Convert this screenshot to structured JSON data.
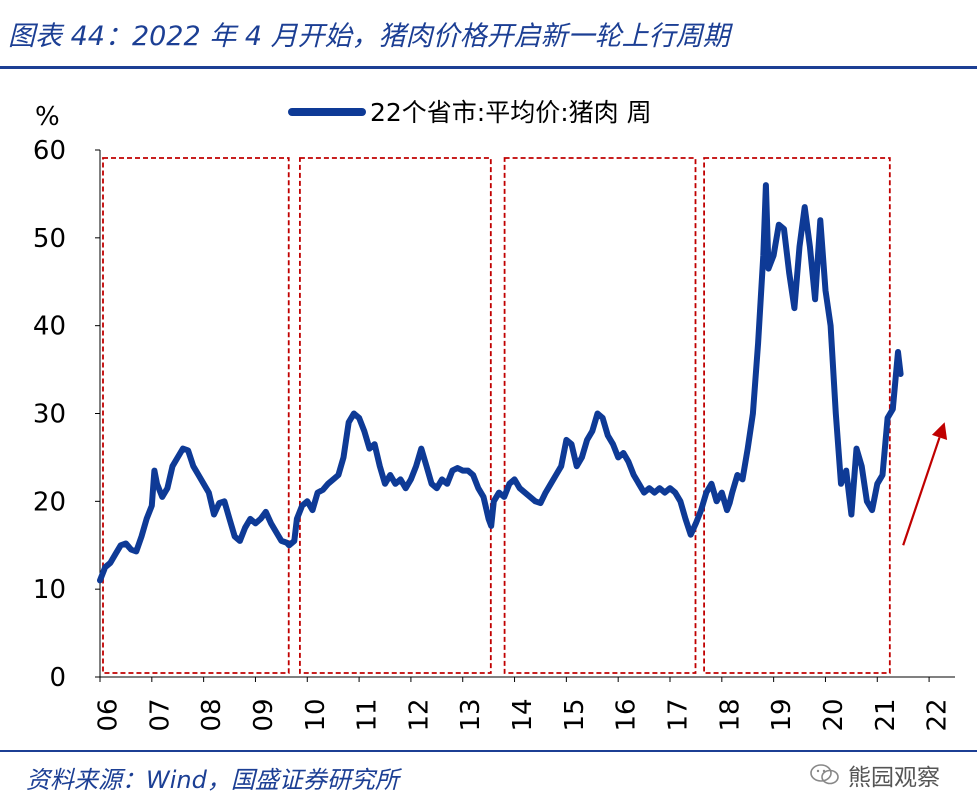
{
  "header": {
    "title": "图表 44：2022 年 4 月开始，猪肉价格开启新一轮上行周期"
  },
  "footer": {
    "source": "资料来源：Wind，国盛证券研究所",
    "watermark": "熊园观察"
  },
  "colors": {
    "accent": "#1c3f94",
    "series": "#0e3a96",
    "box": "#c00000",
    "arrow": "#c00000"
  },
  "chart_data": {
    "type": "line",
    "ylabel": "%",
    "ylim": [
      0,
      60
    ],
    "yticks": [
      0,
      10,
      20,
      30,
      40,
      50,
      60
    ],
    "xlim": [
      2006.0,
      2022.6
    ],
    "xtick_labels": [
      "06",
      "07",
      "08",
      "09",
      "10",
      "11",
      "12",
      "13",
      "14",
      "15",
      "16",
      "17",
      "18",
      "19",
      "20",
      "21",
      "22"
    ],
    "legend": {
      "position": "top-center",
      "label": "22个省市:平均价:猪肉 周"
    },
    "series": [
      {
        "name": "22个省市:平均价:猪肉 周",
        "points": [
          [
            2006.0,
            11.0
          ],
          [
            2006.1,
            12.5
          ],
          [
            2006.2,
            13.0
          ],
          [
            2006.3,
            14.0
          ],
          [
            2006.4,
            15.0
          ],
          [
            2006.5,
            15.2
          ],
          [
            2006.6,
            14.5
          ],
          [
            2006.7,
            14.3
          ],
          [
            2006.8,
            16.0
          ],
          [
            2006.9,
            18.0
          ],
          [
            2007.0,
            19.5
          ],
          [
            2007.05,
            23.5
          ],
          [
            2007.1,
            22.0
          ],
          [
            2007.2,
            20.5
          ],
          [
            2007.3,
            21.5
          ],
          [
            2007.4,
            24.0
          ],
          [
            2007.5,
            25.0
          ],
          [
            2007.6,
            26.0
          ],
          [
            2007.7,
            25.8
          ],
          [
            2007.8,
            24.0
          ],
          [
            2007.9,
            23.0
          ],
          [
            2008.0,
            22.0
          ],
          [
            2008.1,
            21.0
          ],
          [
            2008.2,
            18.5
          ],
          [
            2008.3,
            19.8
          ],
          [
            2008.4,
            20.0
          ],
          [
            2008.5,
            18.0
          ],
          [
            2008.6,
            16.0
          ],
          [
            2008.7,
            15.5
          ],
          [
            2008.8,
            17.0
          ],
          [
            2008.9,
            18.0
          ],
          [
            2009.0,
            17.5
          ],
          [
            2009.1,
            18.0
          ],
          [
            2009.2,
            18.8
          ],
          [
            2009.3,
            17.5
          ],
          [
            2009.4,
            16.5
          ],
          [
            2009.5,
            15.5
          ],
          [
            2009.6,
            15.3
          ],
          [
            2009.65,
            15.0
          ],
          [
            2009.75,
            15.5
          ],
          [
            2009.8,
            18.0
          ],
          [
            2009.9,
            19.5
          ],
          [
            2010.0,
            20.0
          ],
          [
            2010.1,
            19.0
          ],
          [
            2010.2,
            21.0
          ],
          [
            2010.3,
            21.3
          ],
          [
            2010.4,
            22.0
          ],
          [
            2010.5,
            22.5
          ],
          [
            2010.6,
            23.0
          ],
          [
            2010.7,
            25.0
          ],
          [
            2010.8,
            29.0
          ],
          [
            2010.9,
            30.0
          ],
          [
            2011.0,
            29.5
          ],
          [
            2011.1,
            28.0
          ],
          [
            2011.2,
            26.0
          ],
          [
            2011.3,
            26.5
          ],
          [
            2011.4,
            24.0
          ],
          [
            2011.5,
            22.0
          ],
          [
            2011.6,
            23.0
          ],
          [
            2011.7,
            22.0
          ],
          [
            2011.8,
            22.5
          ],
          [
            2011.9,
            21.5
          ],
          [
            2012.0,
            22.5
          ],
          [
            2012.1,
            24.0
          ],
          [
            2012.2,
            26.0
          ],
          [
            2012.3,
            24.0
          ],
          [
            2012.4,
            22.0
          ],
          [
            2012.5,
            21.5
          ],
          [
            2012.6,
            22.5
          ],
          [
            2012.7,
            22.0
          ],
          [
            2012.8,
            23.5
          ],
          [
            2012.9,
            23.8
          ],
          [
            2013.0,
            23.5
          ],
          [
            2013.1,
            23.5
          ],
          [
            2013.2,
            23.0
          ],
          [
            2013.3,
            21.5
          ],
          [
            2013.4,
            20.5
          ],
          [
            2013.5,
            18.0
          ],
          [
            2013.55,
            17.2
          ],
          [
            2013.6,
            20.0
          ],
          [
            2013.7,
            21.0
          ],
          [
            2013.8,
            20.5
          ],
          [
            2013.9,
            22.0
          ],
          [
            2014.0,
            22.5
          ],
          [
            2014.1,
            21.5
          ],
          [
            2014.2,
            21.0
          ],
          [
            2014.3,
            20.5
          ],
          [
            2014.4,
            20.0
          ],
          [
            2014.5,
            19.8
          ],
          [
            2014.6,
            21.0
          ],
          [
            2014.7,
            22.0
          ],
          [
            2014.8,
            23.0
          ],
          [
            2014.9,
            24.0
          ],
          [
            2015.0,
            27.0
          ],
          [
            2015.1,
            26.5
          ],
          [
            2015.2,
            24.0
          ],
          [
            2015.3,
            25.0
          ],
          [
            2015.4,
            27.0
          ],
          [
            2015.5,
            28.0
          ],
          [
            2015.6,
            30.0
          ],
          [
            2015.7,
            29.5
          ],
          [
            2015.8,
            27.5
          ],
          [
            2015.9,
            26.5
          ],
          [
            2016.0,
            25.0
          ],
          [
            2016.1,
            25.5
          ],
          [
            2016.2,
            24.5
          ],
          [
            2016.3,
            23.0
          ],
          [
            2016.4,
            22.0
          ],
          [
            2016.5,
            21.0
          ],
          [
            2016.6,
            21.5
          ],
          [
            2016.7,
            21.0
          ],
          [
            2016.8,
            21.5
          ],
          [
            2016.9,
            21.0
          ],
          [
            2017.0,
            21.5
          ],
          [
            2017.1,
            21.0
          ],
          [
            2017.2,
            20.0
          ],
          [
            2017.3,
            18.0
          ],
          [
            2017.4,
            16.2
          ],
          [
            2017.5,
            17.5
          ],
          [
            2017.6,
            19.0
          ],
          [
            2017.7,
            21.0
          ],
          [
            2017.8,
            22.0
          ],
          [
            2017.9,
            20.0
          ],
          [
            2018.0,
            21.0
          ],
          [
            2018.1,
            19.0
          ],
          [
            2018.15,
            19.8
          ],
          [
            2018.2,
            21.0
          ],
          [
            2018.3,
            23.0
          ],
          [
            2018.4,
            22.5
          ],
          [
            2018.5,
            26.0
          ],
          [
            2018.6,
            30.0
          ],
          [
            2018.7,
            38.0
          ],
          [
            2018.8,
            48.0
          ],
          [
            2018.85,
            56.0
          ],
          [
            2018.9,
            46.5
          ],
          [
            2019.0,
            48.0
          ],
          [
            2019.1,
            51.5
          ],
          [
            2019.2,
            51.0
          ],
          [
            2019.3,
            46.0
          ],
          [
            2019.4,
            42.0
          ],
          [
            2019.5,
            49.0
          ],
          [
            2019.6,
            53.5
          ],
          [
            2019.7,
            49.0
          ],
          [
            2019.8,
            43.0
          ],
          [
            2019.9,
            52.0
          ],
          [
            2020.0,
            44.0
          ],
          [
            2020.1,
            40.0
          ],
          [
            2020.2,
            30.0
          ],
          [
            2020.3,
            22.0
          ],
          [
            2020.4,
            23.5
          ],
          [
            2020.5,
            18.5
          ],
          [
            2020.6,
            26.0
          ],
          [
            2020.7,
            24.0
          ],
          [
            2020.8,
            20.0
          ],
          [
            2020.9,
            19.0
          ],
          [
            2021.0,
            22.0
          ],
          [
            2021.1,
            23.0
          ],
          [
            2021.2,
            29.5
          ],
          [
            2021.3,
            30.5
          ],
          [
            2021.4,
            37.0
          ],
          [
            2021.45,
            34.5
          ]
        ]
      }
    ],
    "boxes": [
      {
        "x0": 2006.0,
        "x1": 2009.7
      },
      {
        "x0": 2009.8,
        "x1": 2013.6
      },
      {
        "x0": 2013.75,
        "x1": 2017.55
      },
      {
        "x0": 2017.6,
        "x1": 2021.3
      }
    ],
    "arrow": {
      "from": [
        2021.5,
        15.0
      ],
      "to": [
        2022.3,
        29.0
      ]
    }
  }
}
